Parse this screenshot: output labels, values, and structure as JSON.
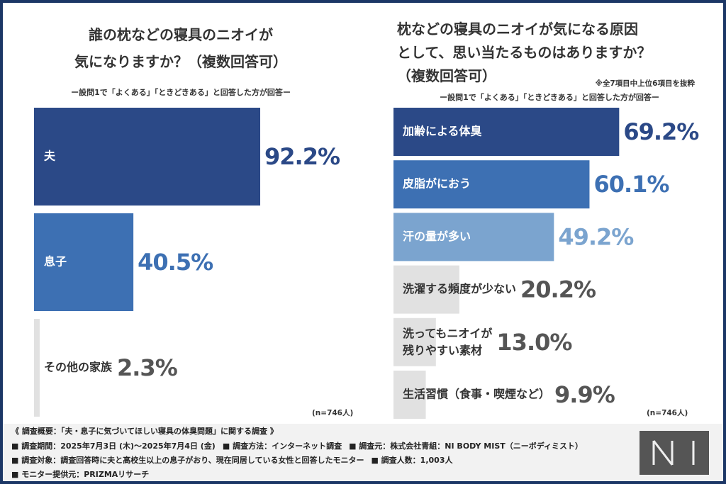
{
  "chart_data": [
    {
      "type": "barh",
      "title": "誰の枕などの寝具のニオイが\n気になりますか？（複数回答可）",
      "subtitle": "ー設問1で「よくある」「ときどきある」と回答した方が回答ー",
      "categories": [
        "夫",
        "息子",
        "その他の家族"
      ],
      "values": [
        92.2,
        40.5,
        2.3
      ],
      "value_labels": [
        "92.2%",
        "40.5%",
        "2.3%"
      ],
      "colors": [
        "#2b4987",
        "#3d70b3",
        "#e1e1e1"
      ],
      "label_colors": [
        "#ffffff",
        "#ffffff",
        "#333333"
      ],
      "value_colors": [
        "#2b4987",
        "#3d70b3",
        "#555555"
      ],
      "xlim": [
        0,
        100
      ],
      "sample_size": "(n=746人)"
    },
    {
      "type": "barh",
      "title": "枕などの寝具のニオイが気になる原因\nとして、思い当たるものはありますか？\n（複数回答可）",
      "note": "※全7項目中上位6項目を抜粋",
      "subtitle": "ー設問1で「よくある」「ときどきある」と回答した方が回答ー",
      "categories": [
        "加齢による体臭",
        "皮脂がにおう",
        "汗の量が多い",
        "洗濯する頻度が少ない",
        "洗ってもニオイが\n残りやすい素材",
        "生活習慣（食事・喫煙など）"
      ],
      "values": [
        69.2,
        60.1,
        49.2,
        20.2,
        13.0,
        9.9
      ],
      "value_labels": [
        "69.2%",
        "60.1%",
        "49.2%",
        "20.2%",
        "13.0%",
        "9.9%"
      ],
      "colors": [
        "#2b4987",
        "#3d70b3",
        "#7ba4cf",
        "#e1e1e1",
        "#e1e1e1",
        "#e1e1e1"
      ],
      "label_colors": [
        "#ffffff",
        "#ffffff",
        "#ffffff",
        "#333333",
        "#333333",
        "#333333"
      ],
      "value_colors": [
        "#2b4987",
        "#3d70b3",
        "#7ba4cf",
        "#555555",
        "#555555",
        "#555555"
      ],
      "xlim": [
        0,
        100
      ],
      "sample_size": "(n=746人)"
    }
  ],
  "footer": {
    "lines": [
      [
        "《 調査概要：「夫・息子に気づいてほしい寝具の体臭問題」に関する調査 》"
      ],
      [
        "■ 調査期間：2025年7月3日 (木)〜2025年7月4日 (金)",
        "■ 調査方法：インターネット調査",
        "■ 調査元：株式会社青組：NI BODY MIST（ニーボディミスト）"
      ],
      [
        "■ 調査対象：調査回答時に夫と高校生以上の息子がおり、現在同居している女性と回答したモニター",
        "■ 調査人数：1,003人"
      ],
      [
        "■ モニター提供元：PRIZMAリサーチ"
      ]
    ]
  }
}
